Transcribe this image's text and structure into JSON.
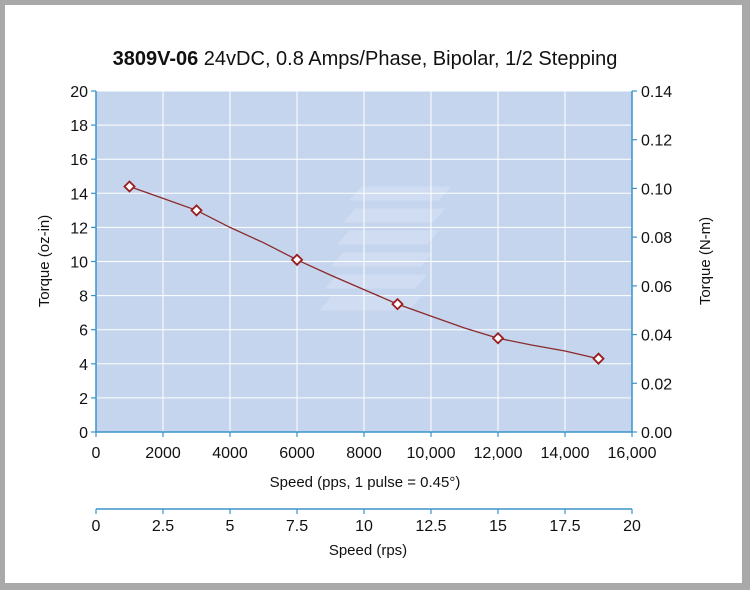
{
  "chart_data": {
    "type": "line",
    "title_bold": "3809V-06",
    "title_rest": " 24vDC, 0.8 Amps/Phase, Bipolar, 1/2 Stepping",
    "xlabel": "Speed (pps, 1 pulse = 0.45°)",
    "ylabel_left": "Torque (oz-in)",
    "ylabel_right": "Torque (N-m)",
    "xlabel_secondary": "Speed (rps)",
    "xlim": [
      0,
      16000
    ],
    "ylim": [
      0,
      20
    ],
    "ylim_right": [
      0,
      0.14
    ],
    "xlim_secondary": [
      0,
      20
    ],
    "x_ticks": [
      "0",
      "2000",
      "4000",
      "6000",
      "8000",
      "10,000",
      "12,000",
      "14,000",
      "16,000"
    ],
    "y_ticks": [
      "0",
      "2",
      "4",
      "6",
      "8",
      "10",
      "12",
      "14",
      "16",
      "18",
      "20"
    ],
    "y_right_ticks": [
      "0.00",
      "0.02",
      "0.04",
      "0.06",
      "0.08",
      "0.10",
      "0.12",
      "0.14"
    ],
    "x_secondary_ticks": [
      "0",
      "2.5",
      "5",
      "7.5",
      "10",
      "12.5",
      "15",
      "17.5",
      "20"
    ],
    "grid": true,
    "series": [
      {
        "x": [
          1000,
          3000,
          6000,
          9000,
          12000,
          15000
        ],
        "y": [
          14.4,
          13.0,
          10.1,
          7.5,
          5.5,
          4.3
        ],
        "curve_x": [
          1000,
          2000,
          3000,
          4000,
          5000,
          6000,
          7000,
          8000,
          9000,
          10000,
          11000,
          12000,
          13000,
          14000,
          15000
        ],
        "curve_y": [
          14.4,
          13.7,
          13.0,
          12.0,
          11.1,
          10.1,
          9.2,
          8.35,
          7.5,
          6.8,
          6.1,
          5.5,
          5.1,
          4.75,
          4.3
        ]
      }
    ],
    "colors": {
      "plot_bg": "#c5d5ee",
      "axis": "#3a94c8",
      "line": "#8b2a2a",
      "marker": "#9b1c1c"
    }
  }
}
